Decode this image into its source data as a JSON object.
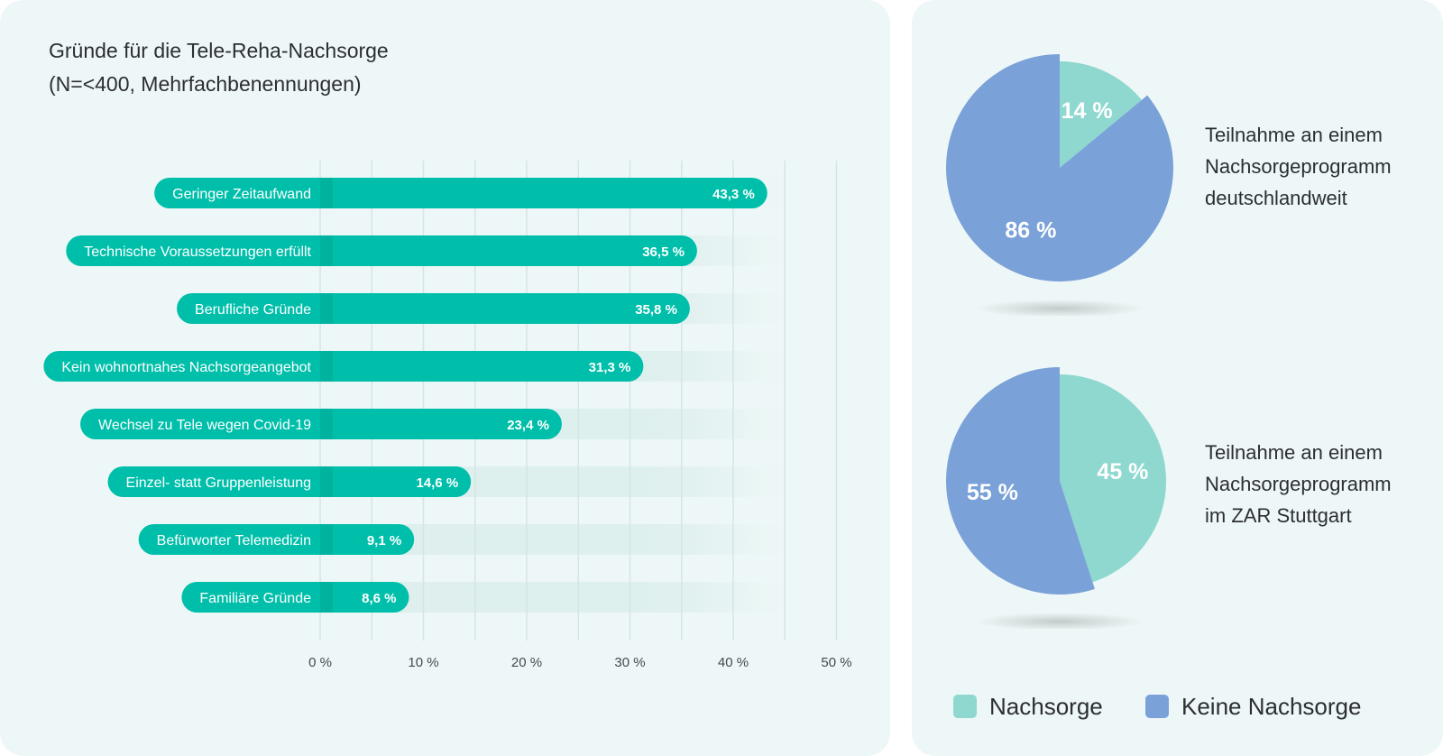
{
  "title_lines": [
    "Gründe für die Tele-Reha-Nachsorge",
    "(N=<400, Mehrfachbenennungen)"
  ],
  "chart_data": [
    {
      "type": "bar",
      "orientation": "horizontal",
      "categories": [
        "Geringer Zeitaufwand",
        "Technische Voraussetzungen erfüllt",
        "Berufliche Gründe",
        "Kein wohnortnahes Nachsorgeangebot",
        "Wechsel zu  Tele wegen Covid-19",
        "Einzel- statt Gruppenleistung",
        "Befürworter Telemedizin",
        "Familiäre Gründe"
      ],
      "values": [
        43.3,
        36.5,
        35.8,
        31.3,
        23.4,
        14.6,
        9.1,
        8.6
      ],
      "value_labels": [
        "43,3 %",
        "36,5 %",
        "35,8 %",
        "31,3 %",
        "23,4 %",
        "14,6 %",
        "9,1 %",
        "8,6 %"
      ],
      "xlim": [
        0,
        50
      ],
      "x_ticks": [
        0,
        10,
        20,
        30,
        40,
        50
      ],
      "x_tick_labels": [
        "0 %",
        "10 %",
        "20 %",
        "30 %",
        "40 %",
        "50 %"
      ],
      "grid": true,
      "color": "#00bfaa"
    },
    {
      "type": "pie",
      "slices": [
        {
          "name": "Nachsorge",
          "value": 14,
          "label": "14 %"
        },
        {
          "name": "Keine Nachsorge",
          "value": 86,
          "label": "86 %"
        }
      ],
      "caption": [
        "Teilnahme an einem",
        "Nachsorgeprogramm",
        "deutschlandweit"
      ]
    },
    {
      "type": "pie",
      "slices": [
        {
          "name": "Nachsorge",
          "value": 45,
          "label": "45 %"
        },
        {
          "name": "Keine Nachsorge",
          "value": 55,
          "label": "55 %"
        }
      ],
      "caption": [
        "Teilnahme an einem",
        "Nachsorgeprogramm",
        "im ZAR Stuttgart"
      ]
    }
  ],
  "legend": [
    {
      "label": "Nachsorge",
      "color": "#8ed8cf"
    },
    {
      "label": "Keine Nachsorge",
      "color": "#7aa1d8"
    }
  ],
  "colors": {
    "bar": "#00bfaa",
    "track": "#ddefed",
    "grid": "#d3e6e4",
    "pie_nachsorge": "#8ed8cf",
    "pie_keine": "#7aa1d8"
  }
}
